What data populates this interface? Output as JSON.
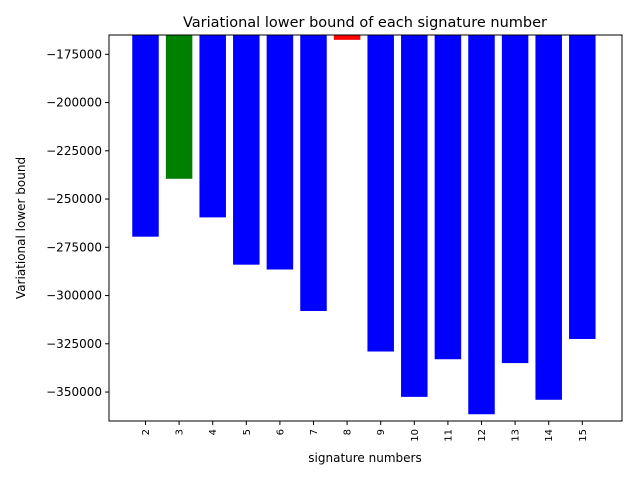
{
  "chart_data": {
    "type": "bar",
    "title": "Variational lower bound of each signature number",
    "xlabel": "signature numbers",
    "ylabel": "Variational lower bound",
    "categories": [
      "2",
      "3",
      "4",
      "5",
      "6",
      "7",
      "8",
      "9",
      "10",
      "11",
      "12",
      "13",
      "14",
      "15"
    ],
    "values": [
      -269500,
      -239500,
      -259500,
      -284000,
      -286500,
      -308000,
      -167500,
      -329000,
      -352500,
      -333000,
      -361500,
      -335000,
      -354000,
      -322500
    ],
    "bar_colors": [
      "#0000ff",
      "#008000",
      "#0000ff",
      "#0000ff",
      "#0000ff",
      "#0000ff",
      "#ff0000",
      "#0000ff",
      "#0000ff",
      "#0000ff",
      "#0000ff",
      "#0000ff",
      "#0000ff",
      "#0000ff"
    ],
    "ylim": [
      -365000,
      -165000
    ],
    "yticks": [
      -175000,
      -200000,
      -225000,
      -250000,
      -275000,
      -300000,
      -325000,
      -350000
    ],
    "ytick_labels": [
      "−175000",
      "−200000",
      "−225000",
      "−250000",
      "−275000",
      "−300000",
      "−325000",
      "−350000"
    ],
    "grid": false,
    "legend": "none"
  }
}
